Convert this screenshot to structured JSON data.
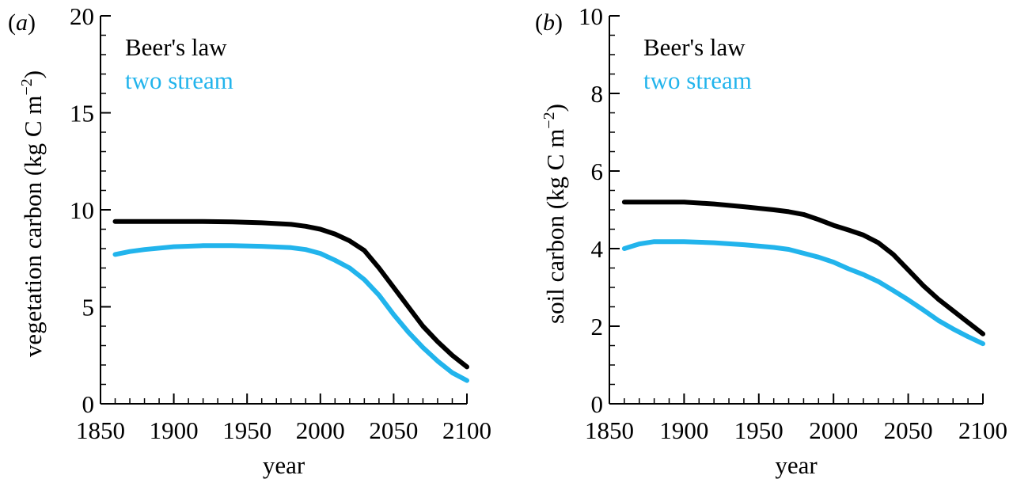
{
  "chart_data": [
    {
      "type": "line",
      "panel_label": "(a)",
      "xlabel": "year",
      "ylabel": "vegetation carbon (kg C m−2)",
      "xlim": [
        1850,
        2100
      ],
      "ylim": [
        0,
        20
      ],
      "xticks": [
        1850,
        1900,
        1950,
        2000,
        2050,
        2100
      ],
      "yticks": [
        0,
        5,
        10,
        15,
        20
      ],
      "legend_position": "top-left",
      "series": [
        {
          "name": "Beer's law",
          "color": "#000000",
          "x": [
            1860,
            1880,
            1900,
            1920,
            1940,
            1960,
            1980,
            1990,
            2000,
            2010,
            2020,
            2030,
            2040,
            2050,
            2060,
            2070,
            2080,
            2090,
            2100
          ],
          "y": [
            9.4,
            9.4,
            9.4,
            9.4,
            9.38,
            9.33,
            9.25,
            9.15,
            9.0,
            8.75,
            8.4,
            7.9,
            7.0,
            6.0,
            5.0,
            4.0,
            3.2,
            2.5,
            1.9
          ]
        },
        {
          "name": "two stream",
          "color": "#22b4ec",
          "x": [
            1860,
            1870,
            1880,
            1900,
            1920,
            1940,
            1960,
            1980,
            1990,
            2000,
            2010,
            2020,
            2030,
            2040,
            2050,
            2060,
            2070,
            2080,
            2090,
            2100
          ],
          "y": [
            7.7,
            7.85,
            7.95,
            8.1,
            8.15,
            8.15,
            8.12,
            8.05,
            7.95,
            7.75,
            7.4,
            7.0,
            6.4,
            5.6,
            4.6,
            3.7,
            2.9,
            2.2,
            1.6,
            1.2
          ]
        }
      ]
    },
    {
      "type": "line",
      "panel_label": "(b)",
      "xlabel": "year",
      "ylabel": "soil carbon (kg C m−2)",
      "xlim": [
        1850,
        2100
      ],
      "ylim": [
        0,
        10
      ],
      "xticks": [
        1850,
        1900,
        1950,
        2000,
        2050,
        2100
      ],
      "yticks": [
        0,
        2,
        4,
        6,
        8,
        10
      ],
      "legend_position": "top-left",
      "series": [
        {
          "name": "Beer's law",
          "color": "#000000",
          "x": [
            1860,
            1880,
            1900,
            1920,
            1940,
            1960,
            1970,
            1980,
            1990,
            2000,
            2010,
            2020,
            2030,
            2040,
            2050,
            2060,
            2070,
            2080,
            2090,
            2100
          ],
          "y": [
            5.2,
            5.2,
            5.2,
            5.15,
            5.08,
            5.0,
            4.95,
            4.88,
            4.75,
            4.6,
            4.48,
            4.35,
            4.15,
            3.85,
            3.45,
            3.05,
            2.7,
            2.4,
            2.1,
            1.8
          ]
        },
        {
          "name": "two stream",
          "color": "#22b4ec",
          "x": [
            1860,
            1870,
            1880,
            1900,
            1920,
            1940,
            1960,
            1970,
            1980,
            1990,
            2000,
            2010,
            2020,
            2030,
            2040,
            2050,
            2060,
            2070,
            2080,
            2090,
            2100
          ],
          "y": [
            4.0,
            4.12,
            4.18,
            4.18,
            4.15,
            4.1,
            4.03,
            3.98,
            3.88,
            3.78,
            3.65,
            3.48,
            3.33,
            3.15,
            2.92,
            2.68,
            2.42,
            2.15,
            1.93,
            1.73,
            1.55
          ]
        }
      ]
    }
  ]
}
